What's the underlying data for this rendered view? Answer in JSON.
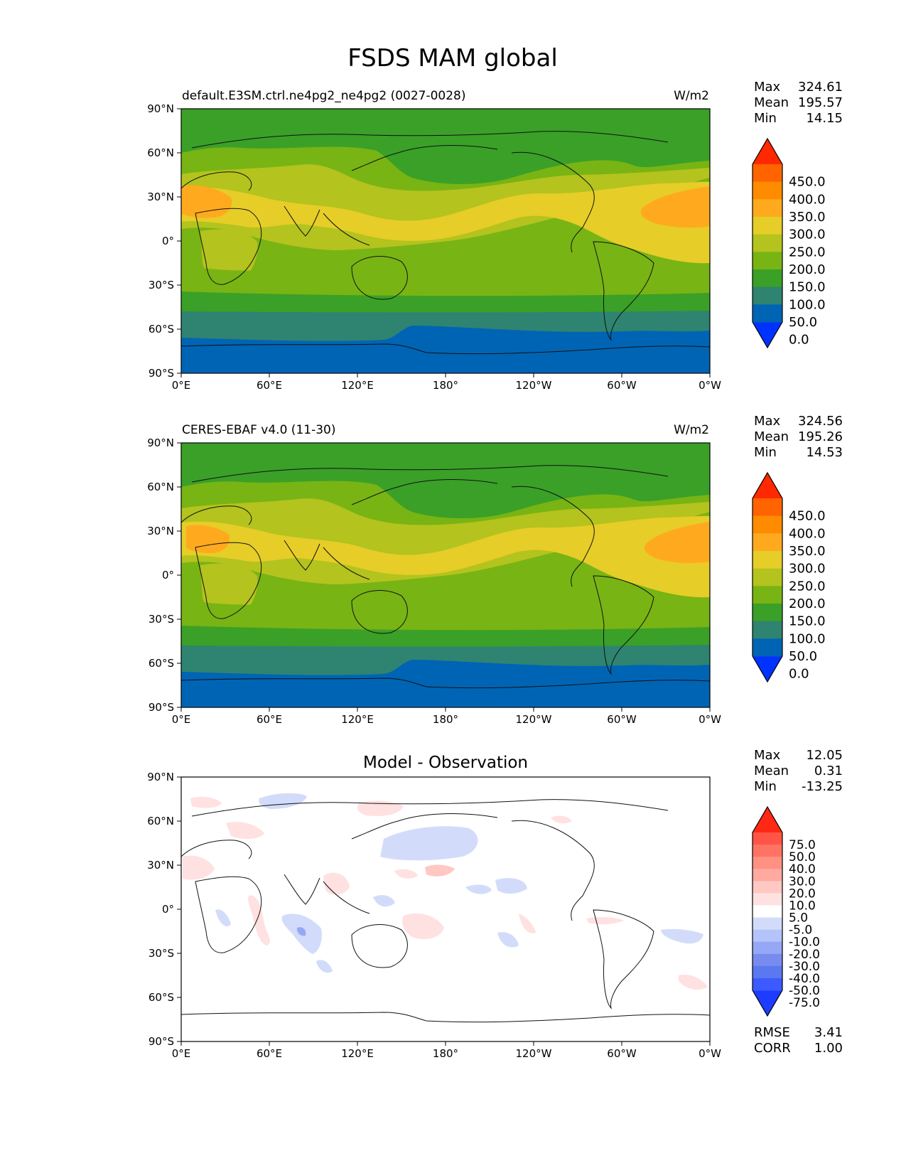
{
  "title": "FSDS MAM global",
  "lon_ticks": [
    "0°E",
    "60°E",
    "120°E",
    "180°",
    "120°W",
    "60°W",
    "0°W"
  ],
  "lat_ticks": [
    "90°N",
    "60°N",
    "30°N",
    "0°",
    "30°S",
    "60°S",
    "90°S"
  ],
  "colors": {
    "seq": [
      "#0032ff",
      "#0064b4",
      "#2e8470",
      "#3aa028",
      "#78b414",
      "#b4c31e",
      "#e6cd28",
      "#ffaa1e",
      "#ff8c00",
      "#ff6400",
      "#ff2800"
    ],
    "div": [
      "#1e3cff",
      "#3c5aff",
      "#5a78f0",
      "#788cf0",
      "#96a8f5",
      "#b4c3fa",
      "#d2dcfa",
      "#ffffff",
      "#ffe1e1",
      "#ffc8c3",
      "#ffaaa0",
      "#ff9182",
      "#ff7364",
      "#ff5546",
      "#ff2814"
    ]
  },
  "panels": [
    {
      "name": "model",
      "left_title": "default.E3SM.ctrl.ne4pg2_ne4pg2 (0027-0028)",
      "units": "W/m2",
      "stats": [
        {
          "label": "Max",
          "value": "324.61"
        },
        {
          "label": "Mean",
          "value": "195.57"
        },
        {
          "label": "Min",
          "value": "14.15"
        }
      ],
      "colorbar_labels": [
        "450.0",
        "400.0",
        "350.0",
        "300.0",
        "250.0",
        "200.0",
        "150.0",
        "100.0",
        "50.0",
        "0.0"
      ]
    },
    {
      "name": "obs",
      "left_title": "CERES-EBAF v4.0 (11-30)",
      "units": "W/m2",
      "stats": [
        {
          "label": "Max",
          "value": "324.56"
        },
        {
          "label": "Mean",
          "value": "195.26"
        },
        {
          "label": "Min",
          "value": "14.53"
        }
      ],
      "colorbar_labels": [
        "450.0",
        "400.0",
        "350.0",
        "300.0",
        "250.0",
        "200.0",
        "150.0",
        "100.0",
        "50.0",
        "0.0"
      ]
    },
    {
      "name": "diff",
      "center_title": "Model - Observation",
      "stats": [
        {
          "label": "Max",
          "value": "12.05"
        },
        {
          "label": "Mean",
          "value": "0.31"
        },
        {
          "label": "Min",
          "value": "-13.25"
        }
      ],
      "colorbar_labels": [
        "75.0",
        "50.0",
        "40.0",
        "30.0",
        "20.0",
        "10.0",
        "5.0",
        "-5.0",
        "-10.0",
        "-20.0",
        "-30.0",
        "-40.0",
        "-50.0",
        "-75.0"
      ],
      "metrics": [
        {
          "label": "RMSE",
          "value": "3.41"
        },
        {
          "label": "CORR",
          "value": "1.00"
        }
      ]
    }
  ]
}
